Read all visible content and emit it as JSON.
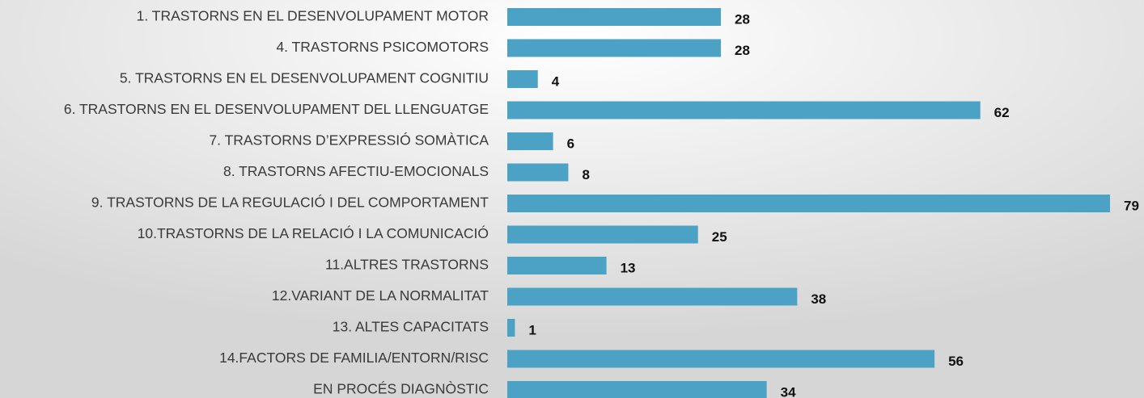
{
  "chart_data": {
    "type": "bar",
    "orientation": "horizontal",
    "color": "#4ba2c4",
    "categories": [
      "1. TRASTORNS EN EL DESENVOLUPAMENT MOTOR",
      "4. TRASTORNS PSICOMOTORS",
      "5. TRASTORNS EN EL DESENVOLUPAMENT COGNITIU",
      "6. TRASTORNS EN EL DESENVOLUPAMENT DEL LLENGUATGE",
      "7. TRASTORNS D’EXPRESSIÓ SOMÀTICA",
      "8. TRASTORNS AFECTIU-EMOCIONALS",
      "9. TRASTORNS DE LA REGULACIÓ I DEL COMPORTAMENT",
      "10.TRASTORNS DE LA RELACIÓ I LA COMUNICACIÓ",
      "11.ALTRES TRASTORNS",
      "12.VARIANT DE LA NORMALITAT",
      "13. ALTES CAPACITATS",
      "14.FACTORS DE FAMILIA/ENTORN/RISC",
      "EN PROCÉS DIAGNÒSTIC"
    ],
    "values": [
      28,
      28,
      4,
      62,
      6,
      8,
      79,
      25,
      13,
      38,
      1,
      56,
      34
    ]
  }
}
